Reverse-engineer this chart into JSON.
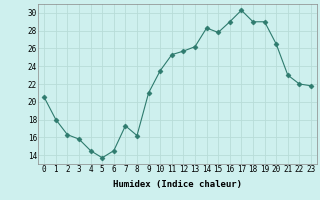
{
  "x": [
    0,
    1,
    2,
    3,
    4,
    5,
    6,
    7,
    8,
    9,
    10,
    11,
    12,
    13,
    14,
    15,
    16,
    17,
    18,
    19,
    20,
    21,
    22,
    23
  ],
  "y": [
    20.5,
    18.0,
    16.3,
    15.8,
    14.5,
    13.7,
    14.5,
    17.3,
    16.2,
    21.0,
    23.5,
    25.3,
    25.7,
    26.2,
    28.3,
    27.8,
    29.0,
    30.3,
    29.0,
    29.0,
    26.5,
    23.0,
    22.0,
    21.8
  ],
  "line_color": "#2e7b6e",
  "marker": "D",
  "marker_size": 2.5,
  "bg_color": "#cef0ee",
  "grid_color": "#b8dcd8",
  "xlabel": "Humidex (Indice chaleur)",
  "ylim": [
    13,
    31
  ],
  "yticks": [
    14,
    16,
    18,
    20,
    22,
    24,
    26,
    28,
    30
  ],
  "xticks": [
    0,
    1,
    2,
    3,
    4,
    5,
    6,
    7,
    8,
    9,
    10,
    11,
    12,
    13,
    14,
    15,
    16,
    17,
    18,
    19,
    20,
    21,
    22,
    23
  ],
  "label_fontsize": 6.5,
  "tick_fontsize": 5.5
}
